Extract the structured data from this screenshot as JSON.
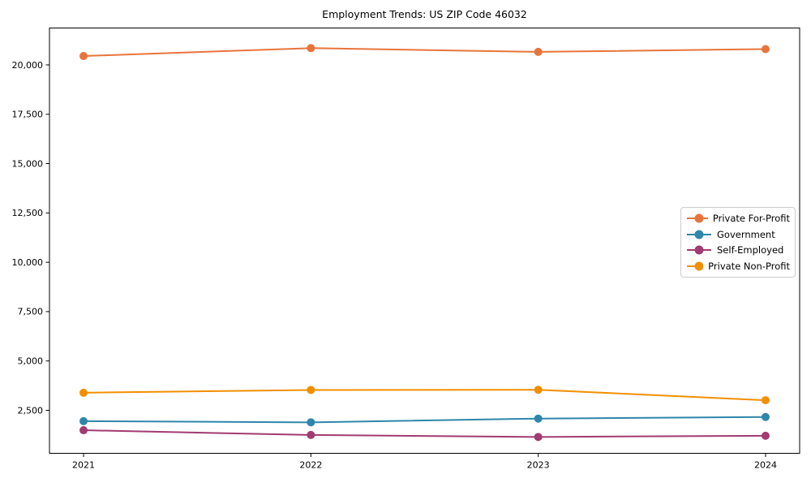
{
  "page": {
    "background_color": "#ffffff"
  },
  "chart_data": {
    "type": "line",
    "title": "Employment Trends: US ZIP Code 46032",
    "categories": [
      "2021",
      "2022",
      "2023",
      "2024"
    ],
    "x_values": [
      2021,
      2022,
      2023,
      2024
    ],
    "series": [
      {
        "name": "Private For-Profit",
        "color": "#E8743B",
        "values": [
          20450,
          20850,
          20660,
          20800
        ]
      },
      {
        "name": "Government",
        "color": "#2E86AB",
        "values": [
          1950,
          1890,
          2080,
          2160
        ]
      },
      {
        "name": "Self-Employed",
        "color": "#A23B72",
        "values": [
          1490,
          1250,
          1150,
          1210
        ]
      },
      {
        "name": "Private Non-Profit",
        "color": "#F18F01",
        "values": [
          3390,
          3530,
          3540,
          3010
        ]
      }
    ],
    "xlabel": "",
    "ylabel": "",
    "yticks": [
      2500,
      5000,
      7500,
      10000,
      12500,
      15000,
      17500,
      20000
    ],
    "ytick_labels": [
      "2,500",
      "5,000",
      "7,500",
      "10,000",
      "12,500",
      "15,000",
      "17,500",
      "20,000"
    ],
    "xlim": [
      2020.85,
      2024.15
    ],
    "ylim": [
      320,
      21870
    ],
    "grid": false,
    "legend_position": "center right",
    "marker": "circle",
    "axis_color": "#000000",
    "text_color": "#000000"
  }
}
